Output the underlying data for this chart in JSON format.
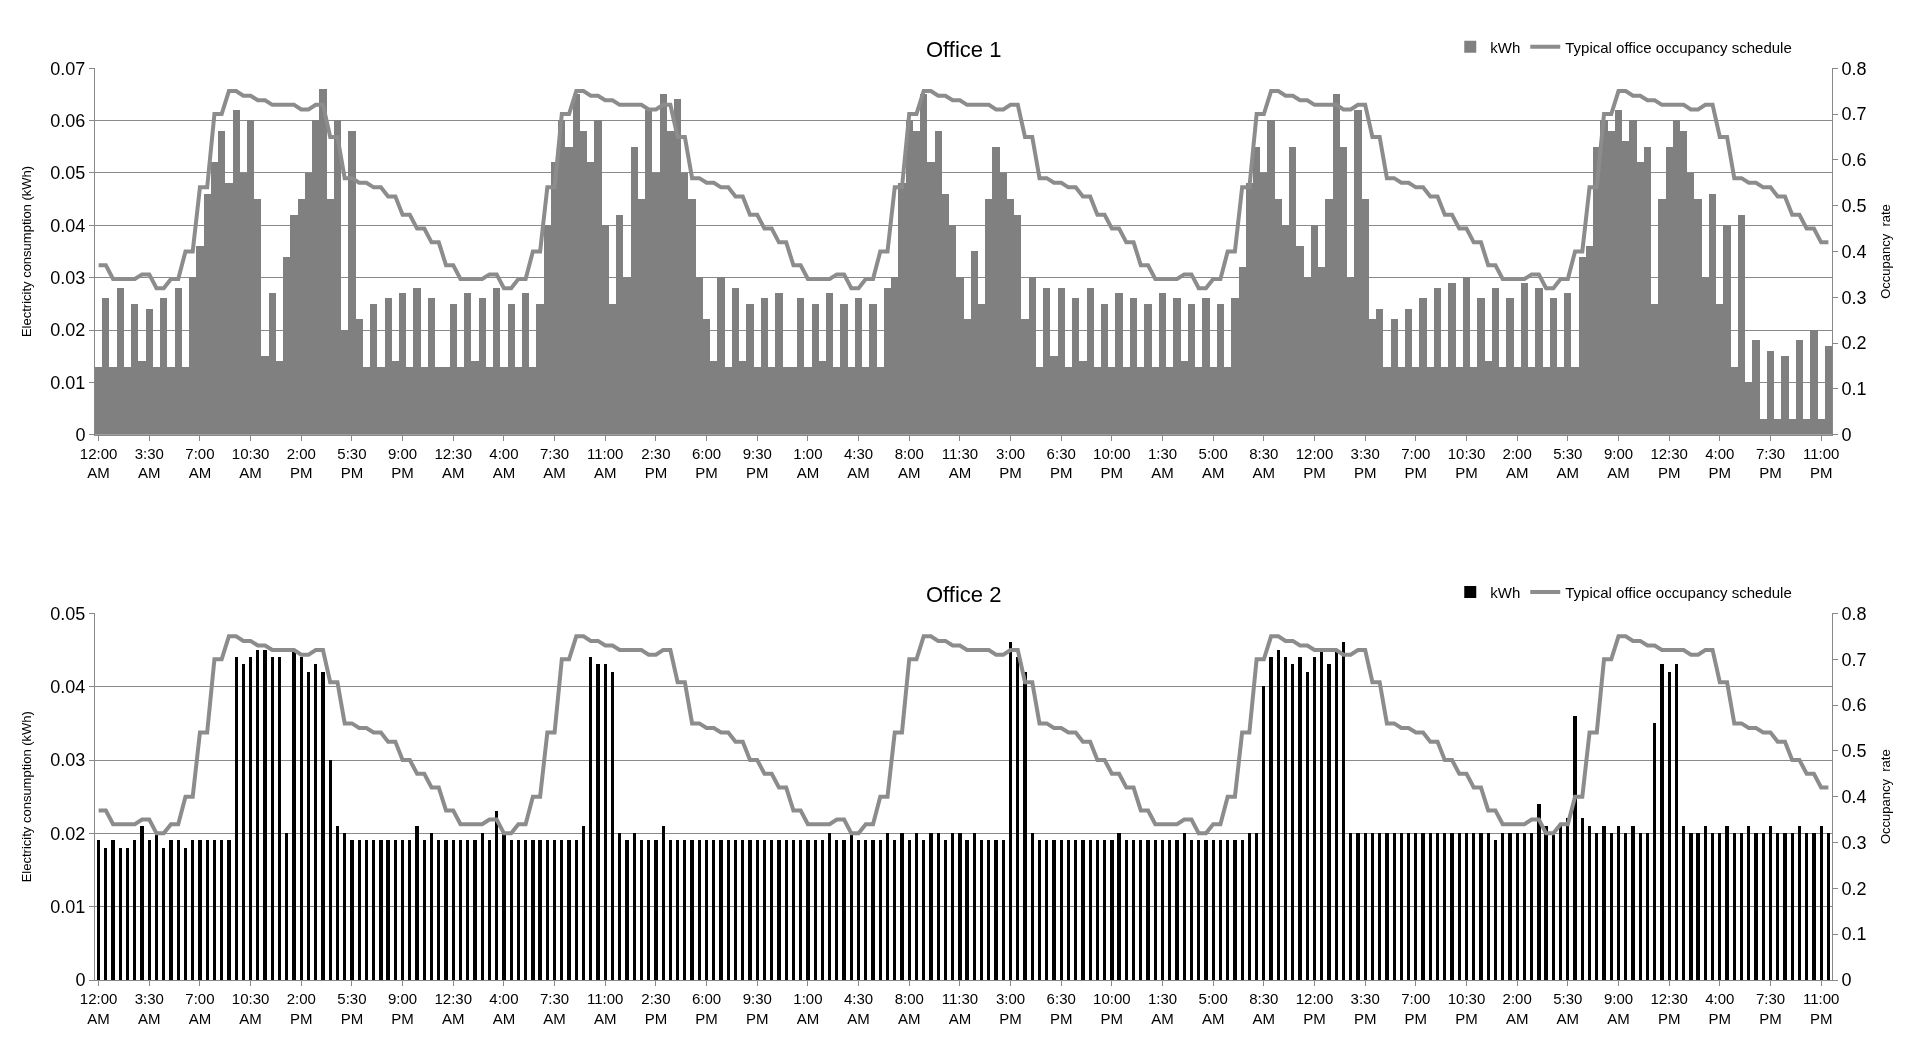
{
  "chart_data": [
    {
      "type": "bar",
      "title": "Office 1",
      "ylabel": "Electricity consumption (kWh)",
      "y2label": "Occupancy  rate",
      "categories": [
        "12:00 AM",
        null,
        null,
        null,
        null,
        null,
        null,
        "3:30 AM",
        null,
        null,
        null,
        null,
        null,
        null,
        "7:00 AM",
        null,
        null,
        null,
        null,
        null,
        null,
        "10:30 AM",
        null,
        null,
        null,
        null,
        null,
        null,
        "2:00 PM",
        null,
        null,
        null,
        null,
        null,
        null,
        "5:30 PM",
        null,
        null,
        null,
        null,
        null,
        null,
        "9:00 PM",
        null,
        null,
        null,
        null,
        null,
        null,
        "12:30 AM",
        null,
        null,
        null,
        null,
        null,
        null,
        "4:00 AM",
        null,
        null,
        null,
        null,
        null,
        null,
        "7:30 AM",
        null,
        null,
        null,
        null,
        null,
        null,
        "11:00 AM",
        null,
        null,
        null,
        null,
        null,
        null,
        "2:30 PM",
        null,
        null,
        null,
        null,
        null,
        null,
        "6:00 PM",
        null,
        null,
        null,
        null,
        null,
        null,
        "9:30 PM",
        null,
        null,
        null,
        null,
        null,
        null,
        "1:00 AM",
        null,
        null,
        null,
        null,
        null,
        null,
        "4:30 AM",
        null,
        null,
        null,
        null,
        null,
        null,
        "8:00 AM",
        null,
        null,
        null,
        null,
        null,
        null,
        "11:30 AM",
        null,
        null,
        null,
        null,
        null,
        null,
        "3:00 PM",
        null,
        null,
        null,
        null,
        null,
        null,
        "6:30 PM",
        null,
        null,
        null,
        null,
        null,
        null,
        "10:00 PM",
        null,
        null,
        null,
        null,
        null,
        null,
        "1:30 AM",
        null,
        null,
        null,
        null,
        null,
        null,
        "5:00 AM",
        null,
        null,
        null,
        null,
        null,
        null,
        "8:30 AM",
        null,
        null,
        null,
        null,
        null,
        null,
        "12:00 PM",
        null,
        null,
        null,
        null,
        null,
        null,
        "3:30 PM",
        null,
        null,
        null,
        null,
        null,
        null,
        "7:00 PM",
        null,
        null,
        null,
        null,
        null,
        null,
        "10:30 PM",
        null,
        null,
        null,
        null,
        null,
        null,
        "2:00 AM",
        null,
        null,
        null,
        null,
        null,
        null,
        "5:30 AM",
        null,
        null,
        null,
        null,
        null,
        null,
        "9:00 AM",
        null,
        null,
        null,
        null,
        null,
        null,
        "12:30 PM",
        null,
        null,
        null,
        null,
        null,
        null,
        "4:00 PM",
        null,
        null,
        null,
        null,
        null,
        null,
        "7:30 PM",
        null,
        null,
        null,
        null,
        null,
        null,
        "11:00 PM",
        null
      ],
      "series": [
        {
          "name": "kWh",
          "color": "#808080",
          "values": [
            0.013,
            0.026,
            0.013,
            0.028,
            0.013,
            0.025,
            0.014,
            0.024,
            0.013,
            0.026,
            0.013,
            0.028,
            0.013,
            0.03,
            0.036,
            0.046,
            0.052,
            0.058,
            0.048,
            0.062,
            0.05,
            0.06,
            0.045,
            0.015,
            0.027,
            0.014,
            0.034,
            0.042,
            0.045,
            0.05,
            0.06,
            0.066,
            0.045,
            0.06,
            0.02,
            0.058,
            0.022,
            0.013,
            0.025,
            0.013,
            0.026,
            0.014,
            0.027,
            0.013,
            0.028,
            0.013,
            0.026,
            0.013,
            0.013,
            0.025,
            0.013,
            0.027,
            0.014,
            0.026,
            0.013,
            0.028,
            0.013,
            0.025,
            0.013,
            0.027,
            0.013,
            0.025,
            0.04,
            0.052,
            0.06,
            0.055,
            0.065,
            0.058,
            0.052,
            0.06,
            0.04,
            0.025,
            0.042,
            0.03,
            0.055,
            0.045,
            0.062,
            0.05,
            0.065,
            0.058,
            0.064,
            0.05,
            0.045,
            0.03,
            0.022,
            0.014,
            0.03,
            0.013,
            0.028,
            0.014,
            0.025,
            0.013,
            0.026,
            0.013,
            0.027,
            0.013,
            0.013,
            0.026,
            0.013,
            0.025,
            0.014,
            0.027,
            0.013,
            0.025,
            0.013,
            0.026,
            0.013,
            0.025,
            0.013,
            0.028,
            0.03,
            0.048,
            0.06,
            0.058,
            0.065,
            0.052,
            0.058,
            0.046,
            0.04,
            0.03,
            0.022,
            0.035,
            0.025,
            0.045,
            0.055,
            0.05,
            0.045,
            0.042,
            0.022,
            0.03,
            0.013,
            0.028,
            0.015,
            0.028,
            0.013,
            0.026,
            0.014,
            0.028,
            0.013,
            0.025,
            0.013,
            0.027,
            0.013,
            0.026,
            0.013,
            0.025,
            0.013,
            0.027,
            0.013,
            0.026,
            0.014,
            0.025,
            0.013,
            0.026,
            0.013,
            0.025,
            0.013,
            0.026,
            0.032,
            0.048,
            0.055,
            0.05,
            0.06,
            0.045,
            0.04,
            0.055,
            0.036,
            0.03,
            0.04,
            0.032,
            0.045,
            0.065,
            0.055,
            0.03,
            0.062,
            0.045,
            0.022,
            0.024,
            0.013,
            0.022,
            0.013,
            0.024,
            0.013,
            0.026,
            0.013,
            0.028,
            0.013,
            0.029,
            0.013,
            0.03,
            0.013,
            0.026,
            0.014,
            0.028,
            0.013,
            0.026,
            0.013,
            0.029,
            0.013,
            0.028,
            0.013,
            0.026,
            0.013,
            0.027,
            0.013,
            0.034,
            0.036,
            0.055,
            0.06,
            0.058,
            0.062,
            0.056,
            0.06,
            0.052,
            0.055,
            0.025,
            0.045,
            0.055,
            0.06,
            0.058,
            0.05,
            0.045,
            0.03,
            0.046,
            0.025,
            0.04,
            0.013,
            0.042,
            0.01,
            0.018,
            0.003,
            0.016,
            0.003,
            0.015,
            0.003,
            0.018,
            0.003,
            0.02,
            0.003,
            0.017
          ]
        },
        {
          "name": "Typical office occupancy schedule",
          "type": "line",
          "axis": "y2",
          "color": "#8c8c8c",
          "values": [
            0.37,
            0.37,
            0.34,
            0.34,
            0.34,
            0.34,
            0.35,
            0.35,
            0.32,
            0.32,
            0.34,
            0.34,
            0.4,
            0.4,
            0.54,
            0.54,
            0.7,
            0.7,
            0.75,
            0.75,
            0.74,
            0.74,
            0.73,
            0.73,
            0.72,
            0.72,
            0.72,
            0.72,
            0.71,
            0.71,
            0.72,
            0.72,
            0.65,
            0.65,
            0.56,
            0.56,
            0.55,
            0.55,
            0.54,
            0.54,
            0.52,
            0.52,
            0.48,
            0.48,
            0.45,
            0.45,
            0.42,
            0.42,
            0.37,
            0.37,
            0.34,
            0.34,
            0.34,
            0.34,
            0.35,
            0.35,
            0.32,
            0.32,
            0.34,
            0.34,
            0.4,
            0.4,
            0.54,
            0.54,
            0.7,
            0.7,
            0.75,
            0.75,
            0.74,
            0.74,
            0.73,
            0.73,
            0.72,
            0.72,
            0.72,
            0.72,
            0.71,
            0.71,
            0.72,
            0.72,
            0.65,
            0.65,
            0.56,
            0.56,
            0.55,
            0.55,
            0.54,
            0.54,
            0.52,
            0.52,
            0.48,
            0.48,
            0.45,
            0.45,
            0.42,
            0.42,
            0.37,
            0.37,
            0.34,
            0.34,
            0.34,
            0.34,
            0.35,
            0.35,
            0.32,
            0.32,
            0.34,
            0.34,
            0.4,
            0.4,
            0.54,
            0.54,
            0.7,
            0.7,
            0.75,
            0.75,
            0.74,
            0.74,
            0.73,
            0.73,
            0.72,
            0.72,
            0.72,
            0.72,
            0.71,
            0.71,
            0.72,
            0.72,
            0.65,
            0.65,
            0.56,
            0.56,
            0.55,
            0.55,
            0.54,
            0.54,
            0.52,
            0.52,
            0.48,
            0.48,
            0.45,
            0.45,
            0.42,
            0.42,
            0.37,
            0.37,
            0.34,
            0.34,
            0.34,
            0.34,
            0.35,
            0.35,
            0.32,
            0.32,
            0.34,
            0.34,
            0.4,
            0.4,
            0.54,
            0.54,
            0.7,
            0.7,
            0.75,
            0.75,
            0.74,
            0.74,
            0.73,
            0.73,
            0.72,
            0.72,
            0.72,
            0.72,
            0.71,
            0.71,
            0.72,
            0.72,
            0.65,
            0.65,
            0.56,
            0.56,
            0.55,
            0.55,
            0.54,
            0.54,
            0.52,
            0.52,
            0.48,
            0.48,
            0.45,
            0.45,
            0.42,
            0.42,
            0.37,
            0.37,
            0.34,
            0.34,
            0.34,
            0.34,
            0.35,
            0.35,
            0.32,
            0.32,
            0.34,
            0.34,
            0.4,
            0.4,
            0.54,
            0.54,
            0.7,
            0.7,
            0.75,
            0.75,
            0.74,
            0.74,
            0.73,
            0.73,
            0.72,
            0.72,
            0.72,
            0.72,
            0.71,
            0.71,
            0.72,
            0.72,
            0.65,
            0.65,
            0.56,
            0.56,
            0.55,
            0.55,
            0.54,
            0.54,
            0.52,
            0.52,
            0.48,
            0.48,
            0.45,
            0.45,
            0.42,
            0.42
          ]
        }
      ],
      "ylim": [
        0,
        0.07
      ],
      "yticks": [
        0,
        0.01,
        0.02,
        0.03,
        0.04,
        0.05,
        0.06,
        0.07
      ],
      "y2lim": [
        0,
        0.8
      ],
      "y2ticks": [
        0,
        0.1,
        0.2,
        0.3,
        0.4,
        0.5,
        0.6,
        0.7,
        0.8
      ],
      "grid": "y",
      "legend": "top right"
    },
    {
      "type": "bar",
      "title": "Office 2",
      "ylabel": "Electricity consumption (kWh)",
      "y2label": "Occupancy  rate",
      "categories": [
        "12:00 AM",
        null,
        null,
        null,
        null,
        null,
        null,
        "3:30 AM",
        null,
        null,
        null,
        null,
        null,
        null,
        "7:00 AM",
        null,
        null,
        null,
        null,
        null,
        null,
        "10:30 AM",
        null,
        null,
        null,
        null,
        null,
        null,
        "2:00 PM",
        null,
        null,
        null,
        null,
        null,
        null,
        "5:30 PM",
        null,
        null,
        null,
        null,
        null,
        null,
        "9:00 PM",
        null,
        null,
        null,
        null,
        null,
        null,
        "12:30 AM",
        null,
        null,
        null,
        null,
        null,
        null,
        "4:00 AM",
        null,
        null,
        null,
        null,
        null,
        null,
        "7:30 AM",
        null,
        null,
        null,
        null,
        null,
        null,
        "11:00 AM",
        null,
        null,
        null,
        null,
        null,
        null,
        "2:30 PM",
        null,
        null,
        null,
        null,
        null,
        null,
        "6:00 PM",
        null,
        null,
        null,
        null,
        null,
        null,
        "9:30 PM",
        null,
        null,
        null,
        null,
        null,
        null,
        "1:00 AM",
        null,
        null,
        null,
        null,
        null,
        null,
        "4:30 AM",
        null,
        null,
        null,
        null,
        null,
        null,
        "8:00 AM",
        null,
        null,
        null,
        null,
        null,
        null,
        "11:30 AM",
        null,
        null,
        null,
        null,
        null,
        null,
        "3:00 PM",
        null,
        null,
        null,
        null,
        null,
        null,
        "6:30 PM",
        null,
        null,
        null,
        null,
        null,
        null,
        "10:00 PM",
        null,
        null,
        null,
        null,
        null,
        null,
        "1:30 AM",
        null,
        null,
        null,
        null,
        null,
        null,
        "5:00 AM",
        null,
        null,
        null,
        null,
        null,
        null,
        "8:30 AM",
        null,
        null,
        null,
        null,
        null,
        null,
        "12:00 PM",
        null,
        null,
        null,
        null,
        null,
        null,
        "3:30 PM",
        null,
        null,
        null,
        null,
        null,
        null,
        "7:00 PM",
        null,
        null,
        null,
        null,
        null,
        null,
        "10:30 PM",
        null,
        null,
        null,
        null,
        null,
        null,
        "2:00 AM",
        null,
        null,
        null,
        null,
        null,
        null,
        "5:30 AM",
        null,
        null,
        null,
        null,
        null,
        null,
        "9:00 AM",
        null,
        null,
        null,
        null,
        null,
        null,
        "12:30 PM",
        null,
        null,
        null,
        null,
        null,
        null,
        "4:00 PM",
        null,
        null,
        null,
        null,
        null,
        null,
        "7:30 PM",
        null,
        null,
        null,
        null,
        null,
        null,
        "11:00 PM",
        null
      ],
      "series": [
        {
          "name": "kWh",
          "color": "#000000",
          "values": [
            0.019,
            0.018,
            0.019,
            0.018,
            0.018,
            0.019,
            0.021,
            0.019,
            0.02,
            0.018,
            0.019,
            0.019,
            0.018,
            0.019,
            0.019,
            0.019,
            0.019,
            0.019,
            0.019,
            0.044,
            0.043,
            0.044,
            0.045,
            0.045,
            0.044,
            0.044,
            0.02,
            0.045,
            0.044,
            0.042,
            0.043,
            0.042,
            0.03,
            0.021,
            0.02,
            0.019,
            0.019,
            0.019,
            0.019,
            0.019,
            0.019,
            0.019,
            0.019,
            0.019,
            0.021,
            0.019,
            0.02,
            0.019,
            0.019,
            0.019,
            0.019,
            0.019,
            0.019,
            0.02,
            0.019,
            0.023,
            0.02,
            0.019,
            0.019,
            0.019,
            0.019,
            0.019,
            0.019,
            0.019,
            0.019,
            0.019,
            0.019,
            0.021,
            0.044,
            0.043,
            0.043,
            0.042,
            0.02,
            0.019,
            0.02,
            0.019,
            0.019,
            0.019,
            0.021,
            0.019,
            0.019,
            0.019,
            0.019,
            0.019,
            0.019,
            0.019,
            0.019,
            0.019,
            0.019,
            0.019,
            0.019,
            0.019,
            0.019,
            0.019,
            0.019,
            0.019,
            0.019,
            0.019,
            0.019,
            0.019,
            0.019,
            0.02,
            0.019,
            0.019,
            0.02,
            0.019,
            0.019,
            0.019,
            0.019,
            0.02,
            0.019,
            0.02,
            0.019,
            0.02,
            0.019,
            0.02,
            0.02,
            0.019,
            0.02,
            0.02,
            0.019,
            0.02,
            0.019,
            0.019,
            0.019,
            0.019,
            0.046,
            0.044,
            0.042,
            0.02,
            0.019,
            0.019,
            0.019,
            0.019,
            0.019,
            0.019,
            0.019,
            0.019,
            0.019,
            0.019,
            0.019,
            0.02,
            0.019,
            0.019,
            0.019,
            0.019,
            0.019,
            0.019,
            0.019,
            0.019,
            0.02,
            0.019,
            0.019,
            0.019,
            0.019,
            0.019,
            0.019,
            0.019,
            0.019,
            0.02,
            0.02,
            0.04,
            0.044,
            0.045,
            0.044,
            0.043,
            0.044,
            0.042,
            0.044,
            0.045,
            0.043,
            0.045,
            0.046,
            0.02,
            0.02,
            0.02,
            0.02,
            0.02,
            0.02,
            0.02,
            0.02,
            0.02,
            0.02,
            0.02,
            0.02,
            0.02,
            0.02,
            0.02,
            0.02,
            0.02,
            0.02,
            0.02,
            0.02,
            0.019,
            0.02,
            0.02,
            0.02,
            0.02,
            0.02,
            0.024,
            0.021,
            0.02,
            0.021,
            0.022,
            0.036,
            0.022,
            0.021,
            0.02,
            0.021,
            0.02,
            0.021,
            0.02,
            0.021,
            0.02,
            0.02,
            0.035,
            0.043,
            0.042,
            0.043,
            0.021,
            0.02,
            0.02,
            0.021,
            0.02,
            0.02,
            0.021,
            0.02,
            0.02,
            0.021,
            0.02,
            0.02,
            0.021,
            0.02,
            0.02,
            0.02,
            0.021,
            0.02,
            0.02,
            0.021,
            0.02
          ]
        },
        {
          "name": "Typical office occupancy schedule",
          "type": "line",
          "axis": "y2",
          "color": "#8c8c8c",
          "values": [
            0.37,
            0.37,
            0.34,
            0.34,
            0.34,
            0.34,
            0.35,
            0.35,
            0.32,
            0.32,
            0.34,
            0.34,
            0.4,
            0.4,
            0.54,
            0.54,
            0.7,
            0.7,
            0.75,
            0.75,
            0.74,
            0.74,
            0.73,
            0.73,
            0.72,
            0.72,
            0.72,
            0.72,
            0.71,
            0.71,
            0.72,
            0.72,
            0.65,
            0.65,
            0.56,
            0.56,
            0.55,
            0.55,
            0.54,
            0.54,
            0.52,
            0.52,
            0.48,
            0.48,
            0.45,
            0.45,
            0.42,
            0.42,
            0.37,
            0.37,
            0.34,
            0.34,
            0.34,
            0.34,
            0.35,
            0.35,
            0.32,
            0.32,
            0.34,
            0.34,
            0.4,
            0.4,
            0.54,
            0.54,
            0.7,
            0.7,
            0.75,
            0.75,
            0.74,
            0.74,
            0.73,
            0.73,
            0.72,
            0.72,
            0.72,
            0.72,
            0.71,
            0.71,
            0.72,
            0.72,
            0.65,
            0.65,
            0.56,
            0.56,
            0.55,
            0.55,
            0.54,
            0.54,
            0.52,
            0.52,
            0.48,
            0.48,
            0.45,
            0.45,
            0.42,
            0.42,
            0.37,
            0.37,
            0.34,
            0.34,
            0.34,
            0.34,
            0.35,
            0.35,
            0.32,
            0.32,
            0.34,
            0.34,
            0.4,
            0.4,
            0.54,
            0.54,
            0.7,
            0.7,
            0.75,
            0.75,
            0.74,
            0.74,
            0.73,
            0.73,
            0.72,
            0.72,
            0.72,
            0.72,
            0.71,
            0.71,
            0.72,
            0.72,
            0.65,
            0.65,
            0.56,
            0.56,
            0.55,
            0.55,
            0.54,
            0.54,
            0.52,
            0.52,
            0.48,
            0.48,
            0.45,
            0.45,
            0.42,
            0.42,
            0.37,
            0.37,
            0.34,
            0.34,
            0.34,
            0.34,
            0.35,
            0.35,
            0.32,
            0.32,
            0.34,
            0.34,
            0.4,
            0.4,
            0.54,
            0.54,
            0.7,
            0.7,
            0.75,
            0.75,
            0.74,
            0.74,
            0.73,
            0.73,
            0.72,
            0.72,
            0.72,
            0.72,
            0.71,
            0.71,
            0.72,
            0.72,
            0.65,
            0.65,
            0.56,
            0.56,
            0.55,
            0.55,
            0.54,
            0.54,
            0.52,
            0.52,
            0.48,
            0.48,
            0.45,
            0.45,
            0.42,
            0.42,
            0.37,
            0.37,
            0.34,
            0.34,
            0.34,
            0.34,
            0.35,
            0.35,
            0.32,
            0.32,
            0.34,
            0.34,
            0.4,
            0.4,
            0.54,
            0.54,
            0.7,
            0.7,
            0.75,
            0.75,
            0.74,
            0.74,
            0.73,
            0.73,
            0.72,
            0.72,
            0.72,
            0.72,
            0.71,
            0.71,
            0.72,
            0.72,
            0.65,
            0.65,
            0.56,
            0.56,
            0.55,
            0.55,
            0.54,
            0.54,
            0.52,
            0.52,
            0.48,
            0.48,
            0.45,
            0.45,
            0.42,
            0.42
          ]
        }
      ],
      "ylim": [
        0,
        0.05
      ],
      "yticks": [
        0,
        0.01,
        0.02,
        0.03,
        0.04,
        0.05
      ],
      "y2lim": [
        0,
        0.8
      ],
      "y2ticks": [
        0,
        0.1,
        0.2,
        0.3,
        0.4,
        0.5,
        0.6,
        0.7,
        0.8
      ],
      "grid": "y",
      "legend": "top right"
    }
  ]
}
